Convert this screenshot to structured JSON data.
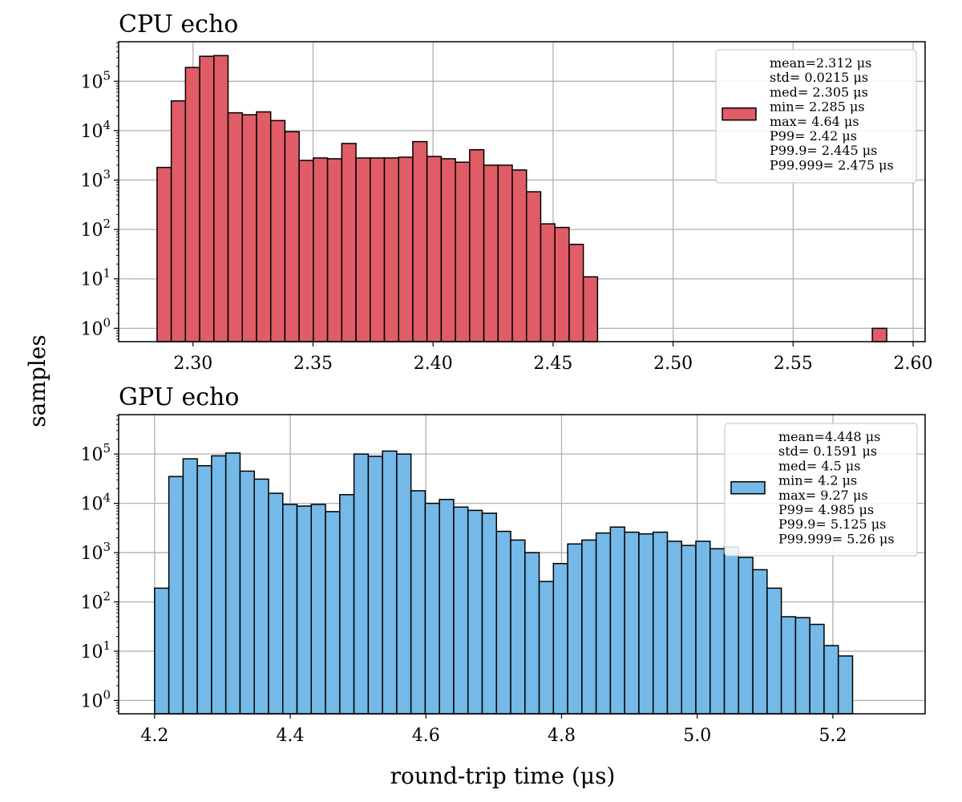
{
  "figure": {
    "ylabel": "samples",
    "xlabel": "round-trip time (μs)"
  },
  "chart_data": [
    {
      "type": "bar",
      "title": "CPU echo",
      "color": "#e05c66",
      "edge_color": "#000000",
      "xlim": [
        2.269,
        2.605
      ],
      "y_scale": "log",
      "ylim_exp": [
        -0.27,
        5.8
      ],
      "grid": true,
      "legend_position": "top-right",
      "x_ticks": [
        {
          "v": 2.3,
          "label": "2.30"
        },
        {
          "v": 2.35,
          "label": "2.35"
        },
        {
          "v": 2.4,
          "label": "2.40"
        },
        {
          "v": 2.45,
          "label": "2.45"
        },
        {
          "v": 2.5,
          "label": "2.50"
        },
        {
          "v": 2.55,
          "label": "2.55"
        },
        {
          "v": 2.6,
          "label": "2.60"
        }
      ],
      "y_ticks": [
        {
          "exp": 0,
          "base": "10",
          "sup": "0"
        },
        {
          "exp": 1,
          "base": "10",
          "sup": "1"
        },
        {
          "exp": 2,
          "base": "10",
          "sup": "2"
        },
        {
          "exp": 3,
          "base": "10",
          "sup": "3"
        },
        {
          "exp": 4,
          "base": "10",
          "sup": "4"
        },
        {
          "exp": 5,
          "base": "10",
          "sup": "5"
        }
      ],
      "bin_start": 2.285,
      "bin_width": 0.00592,
      "values": [
        1800,
        40000,
        190000,
        320000,
        330000,
        23000,
        21000,
        24000,
        16000,
        9500,
        2500,
        2800,
        2700,
        5500,
        2800,
        2800,
        2800,
        2900,
        6000,
        3000,
        2700,
        2300,
        4100,
        2000,
        2000,
        1600,
        580,
        130,
        110,
        50,
        11
      ],
      "outliers": [
        {
          "x0": 2.583,
          "x1": 2.589,
          "value": 1
        }
      ],
      "legend_lines": [
        "mean=2.312 μs",
        "std= 0.0215 μs",
        "med= 2.305 μs",
        "min= 2.285 μs",
        "max= 4.64 μs",
        "P99= 2.42 μs",
        "P99.9= 2.445 μs",
        "P99.999= 2.475 μs"
      ]
    },
    {
      "type": "bar",
      "title": "GPU echo",
      "color": "#74b9e8",
      "edge_color": "#000000",
      "xlim": [
        4.147,
        5.336
      ],
      "y_scale": "log",
      "ylim_exp": [
        -0.27,
        5.8
      ],
      "grid": true,
      "legend_position": "top-right",
      "x_ticks": [
        {
          "v": 4.2,
          "label": "4.2"
        },
        {
          "v": 4.4,
          "label": "4.4"
        },
        {
          "v": 4.6,
          "label": "4.6"
        },
        {
          "v": 4.8,
          "label": "4.8"
        },
        {
          "v": 5.0,
          "label": "5.0"
        },
        {
          "v": 5.2,
          "label": "5.2"
        }
      ],
      "y_ticks": [
        {
          "exp": 0,
          "base": "10",
          "sup": "0"
        },
        {
          "exp": 1,
          "base": "10",
          "sup": "1"
        },
        {
          "exp": 2,
          "base": "10",
          "sup": "2"
        },
        {
          "exp": 3,
          "base": "10",
          "sup": "3"
        },
        {
          "exp": 4,
          "base": "10",
          "sup": "4"
        },
        {
          "exp": 5,
          "base": "10",
          "sup": "5"
        }
      ],
      "bin_start": 4.2,
      "bin_width": 0.021,
      "values": [
        190,
        35000,
        80000,
        58000,
        92000,
        105000,
        45000,
        31000,
        16000,
        9500,
        8800,
        9500,
        6800,
        15000,
        100000,
        90000,
        115000,
        100000,
        18000,
        10000,
        12000,
        8400,
        7200,
        6300,
        2700,
        1800,
        1000,
        260,
        600,
        1500,
        1800,
        2500,
        3300,
        2600,
        2400,
        2600,
        1700,
        1400,
        1700,
        1200,
        1300,
        800,
        450,
        190,
        50,
        48,
        35,
        13,
        8
      ],
      "outliers": [],
      "legend_lines": [
        "mean=4.448 μs",
        "std= 0.1591 μs",
        "med= 4.5 μs",
        "min= 4.2 μs",
        "max= 9.27 μs",
        "P99= 4.985 μs",
        "P99.9= 5.125 μs",
        "P99.999= 5.26 μs"
      ]
    }
  ]
}
